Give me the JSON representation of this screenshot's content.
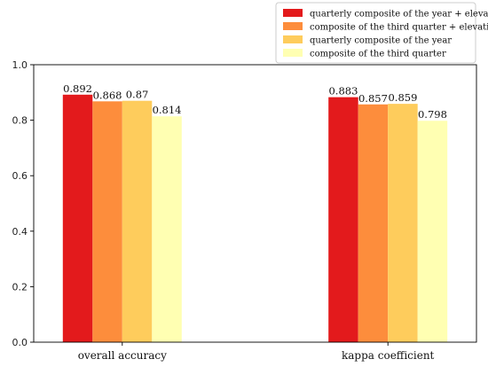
{
  "chart_data": {
    "type": "bar",
    "categories": [
      "overall accuracy",
      "kappa coefficient"
    ],
    "series": [
      {
        "name": "quarterly composite of the year + elevation",
        "values": [
          0.892,
          0.883
        ],
        "value_labels": [
          "0.892",
          "0.883"
        ],
        "color": "#e31a1c"
      },
      {
        "name": "composite of the third quarter + elevation",
        "values": [
          0.868,
          0.857
        ],
        "value_labels": [
          "0.868",
          "0.857"
        ],
        "color": "#fd8d3c"
      },
      {
        "name": "quarterly composite of the year",
        "values": [
          0.87,
          0.859
        ],
        "value_labels": [
          "0.87",
          "0.859"
        ],
        "color": "#fecc5c"
      },
      {
        "name": "composite of the third quarter",
        "values": [
          0.814,
          0.798
        ],
        "value_labels": [
          "0.814",
          "0.798"
        ],
        "color": "#ffffb2"
      }
    ],
    "ylim": [
      0,
      1.0
    ],
    "yticks": [
      0.0,
      0.2,
      0.4,
      0.6,
      0.8,
      1.0
    ],
    "ytick_labels": [
      "0.0",
      "0.2",
      "0.4",
      "0.6",
      "0.8",
      "1.0"
    ],
    "title": "",
    "xlabel": "",
    "ylabel": "",
    "grid": false,
    "legend_position": "top-right"
  }
}
